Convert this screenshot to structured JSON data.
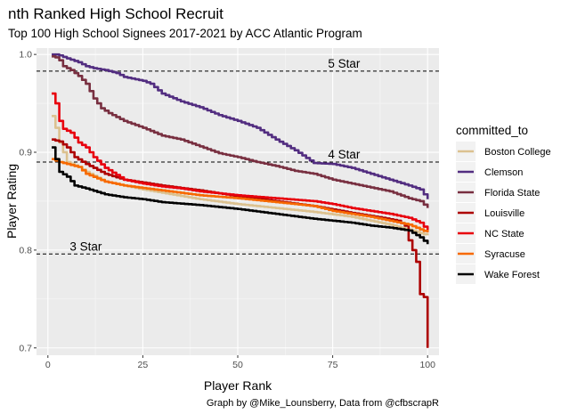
{
  "chart_data": {
    "type": "line",
    "title": "nth Ranked High School Recruit",
    "subtitle": "Top 100 High School Signees 2017-2021 by ACC Atlantic Program",
    "caption": "Graph by @Mike_Lounsberry, Data from @cfbscrapR",
    "xlabel": "Player Rank",
    "ylabel": "Player Rating",
    "xlim": [
      -3,
      103
    ],
    "ylim": [
      0.6925,
      1.0065
    ],
    "x_ticks": [
      "0",
      "25",
      "50",
      "75",
      "100"
    ],
    "y_ticks": [
      "0.7",
      "0.8",
      "0.9",
      "1.0"
    ],
    "grid": true,
    "legend_position": "right",
    "legend_title": "committed_to",
    "hlines": [
      {
        "y": 0.983,
        "label": "5 Star",
        "label_x": 78
      },
      {
        "y": 0.89,
        "label": "4 Star",
        "label_x": 78
      },
      {
        "y": 0.796,
        "label": "3 Star",
        "label_x": 10
      }
    ],
    "series": [
      {
        "name": "Boston College",
        "color": "#dcc18f",
        "points": [
          [
            1,
            0.937
          ],
          [
            2,
            0.925
          ],
          [
            3,
            0.91
          ],
          [
            4,
            0.9
          ],
          [
            5,
            0.89
          ],
          [
            8,
            0.885
          ],
          [
            10,
            0.88
          ],
          [
            15,
            0.87
          ],
          [
            25,
            0.862
          ],
          [
            40,
            0.852
          ],
          [
            50,
            0.847
          ],
          [
            60,
            0.843
          ],
          [
            70,
            0.839
          ],
          [
            80,
            0.834
          ],
          [
            90,
            0.826
          ],
          [
            95,
            0.821
          ],
          [
            100,
            0.815
          ]
        ]
      },
      {
        "name": "Clemson",
        "color": "#522d80",
        "points": [
          [
            1,
            1.0
          ],
          [
            2,
            1.0
          ],
          [
            3,
            0.999
          ],
          [
            5,
            0.996
          ],
          [
            8,
            0.992
          ],
          [
            10,
            0.988
          ],
          [
            12,
            0.986
          ],
          [
            15,
            0.984
          ],
          [
            18,
            0.981
          ],
          [
            20,
            0.977
          ],
          [
            25,
            0.973
          ],
          [
            27,
            0.97
          ],
          [
            30,
            0.96
          ],
          [
            35,
            0.952
          ],
          [
            40,
            0.946
          ],
          [
            45,
            0.938
          ],
          [
            50,
            0.932
          ],
          [
            55,
            0.925
          ],
          [
            60,
            0.913
          ],
          [
            65,
            0.902
          ],
          [
            70,
            0.889
          ],
          [
            75,
            0.888
          ],
          [
            80,
            0.884
          ],
          [
            85,
            0.878
          ],
          [
            90,
            0.872
          ],
          [
            95,
            0.866
          ],
          [
            98,
            0.862
          ],
          [
            100,
            0.852
          ]
        ]
      },
      {
        "name": "Florida State",
        "color": "#782f40",
        "points": [
          [
            1,
            0.998
          ],
          [
            2,
            0.997
          ],
          [
            3,
            0.994
          ],
          [
            4,
            0.988
          ],
          [
            6,
            0.984
          ],
          [
            8,
            0.978
          ],
          [
            10,
            0.97
          ],
          [
            12,
            0.955
          ],
          [
            14,
            0.945
          ],
          [
            16,
            0.94
          ],
          [
            20,
            0.932
          ],
          [
            25,
            0.925
          ],
          [
            30,
            0.917
          ],
          [
            35,
            0.913
          ],
          [
            40,
            0.906
          ],
          [
            45,
            0.899
          ],
          [
            50,
            0.895
          ],
          [
            55,
            0.89
          ],
          [
            60,
            0.886
          ],
          [
            65,
            0.881
          ],
          [
            70,
            0.878
          ],
          [
            75,
            0.872
          ],
          [
            80,
            0.868
          ],
          [
            85,
            0.864
          ],
          [
            90,
            0.86
          ],
          [
            95,
            0.853
          ],
          [
            98,
            0.85
          ],
          [
            100,
            0.843
          ]
        ]
      },
      {
        "name": "Louisville",
        "color": "#ad0000",
        "points": [
          [
            1,
            0.913
          ],
          [
            3,
            0.911
          ],
          [
            5,
            0.905
          ],
          [
            7,
            0.895
          ],
          [
            10,
            0.888
          ],
          [
            15,
            0.878
          ],
          [
            20,
            0.872
          ],
          [
            30,
            0.866
          ],
          [
            40,
            0.861
          ],
          [
            50,
            0.855
          ],
          [
            60,
            0.85
          ],
          [
            70,
            0.845
          ],
          [
            80,
            0.838
          ],
          [
            88,
            0.833
          ],
          [
            92,
            0.83
          ],
          [
            94,
            0.825
          ],
          [
            95,
            0.81
          ],
          [
            96,
            0.8
          ],
          [
            97,
            0.788
          ],
          [
            98,
            0.755
          ],
          [
            99,
            0.752
          ],
          [
            100,
            0.7
          ]
        ]
      },
      {
        "name": "NC State",
        "color": "#e8000d",
        "points": [
          [
            1,
            0.96
          ],
          [
            2,
            0.95
          ],
          [
            3,
            0.932
          ],
          [
            4,
            0.924
          ],
          [
            6,
            0.92
          ],
          [
            8,
            0.91
          ],
          [
            10,
            0.905
          ],
          [
            12,
            0.895
          ],
          [
            15,
            0.884
          ],
          [
            20,
            0.872
          ],
          [
            25,
            0.868
          ],
          [
            30,
            0.865
          ],
          [
            35,
            0.863
          ],
          [
            40,
            0.86
          ],
          [
            50,
            0.856
          ],
          [
            60,
            0.853
          ],
          [
            70,
            0.85
          ],
          [
            75,
            0.847
          ],
          [
            80,
            0.843
          ],
          [
            85,
            0.84
          ],
          [
            90,
            0.837
          ],
          [
            95,
            0.833
          ],
          [
            98,
            0.828
          ],
          [
            100,
            0.82
          ]
        ]
      },
      {
        "name": "Syracuse",
        "color": "#f76900",
        "points": [
          [
            1,
            0.893
          ],
          [
            3,
            0.89
          ],
          [
            5,
            0.888
          ],
          [
            8,
            0.885
          ],
          [
            10,
            0.878
          ],
          [
            15,
            0.87
          ],
          [
            20,
            0.866
          ],
          [
            30,
            0.861
          ],
          [
            40,
            0.856
          ],
          [
            50,
            0.853
          ],
          [
            60,
            0.849
          ],
          [
            70,
            0.845
          ],
          [
            75,
            0.84
          ],
          [
            80,
            0.837
          ],
          [
            85,
            0.834
          ],
          [
            90,
            0.83
          ],
          [
            95,
            0.826
          ],
          [
            100,
            0.818
          ]
        ]
      },
      {
        "name": "Wake Forest",
        "color": "#000000",
        "points": [
          [
            1,
            0.905
          ],
          [
            2,
            0.893
          ],
          [
            3,
            0.88
          ],
          [
            5,
            0.875
          ],
          [
            7,
            0.866
          ],
          [
            10,
            0.863
          ],
          [
            15,
            0.857
          ],
          [
            20,
            0.854
          ],
          [
            25,
            0.852
          ],
          [
            30,
            0.849
          ],
          [
            40,
            0.846
          ],
          [
            50,
            0.842
          ],
          [
            60,
            0.837
          ],
          [
            70,
            0.832
          ],
          [
            80,
            0.828
          ],
          [
            85,
            0.825
          ],
          [
            90,
            0.823
          ],
          [
            95,
            0.82
          ],
          [
            98,
            0.813
          ],
          [
            100,
            0.806
          ]
        ]
      }
    ]
  }
}
